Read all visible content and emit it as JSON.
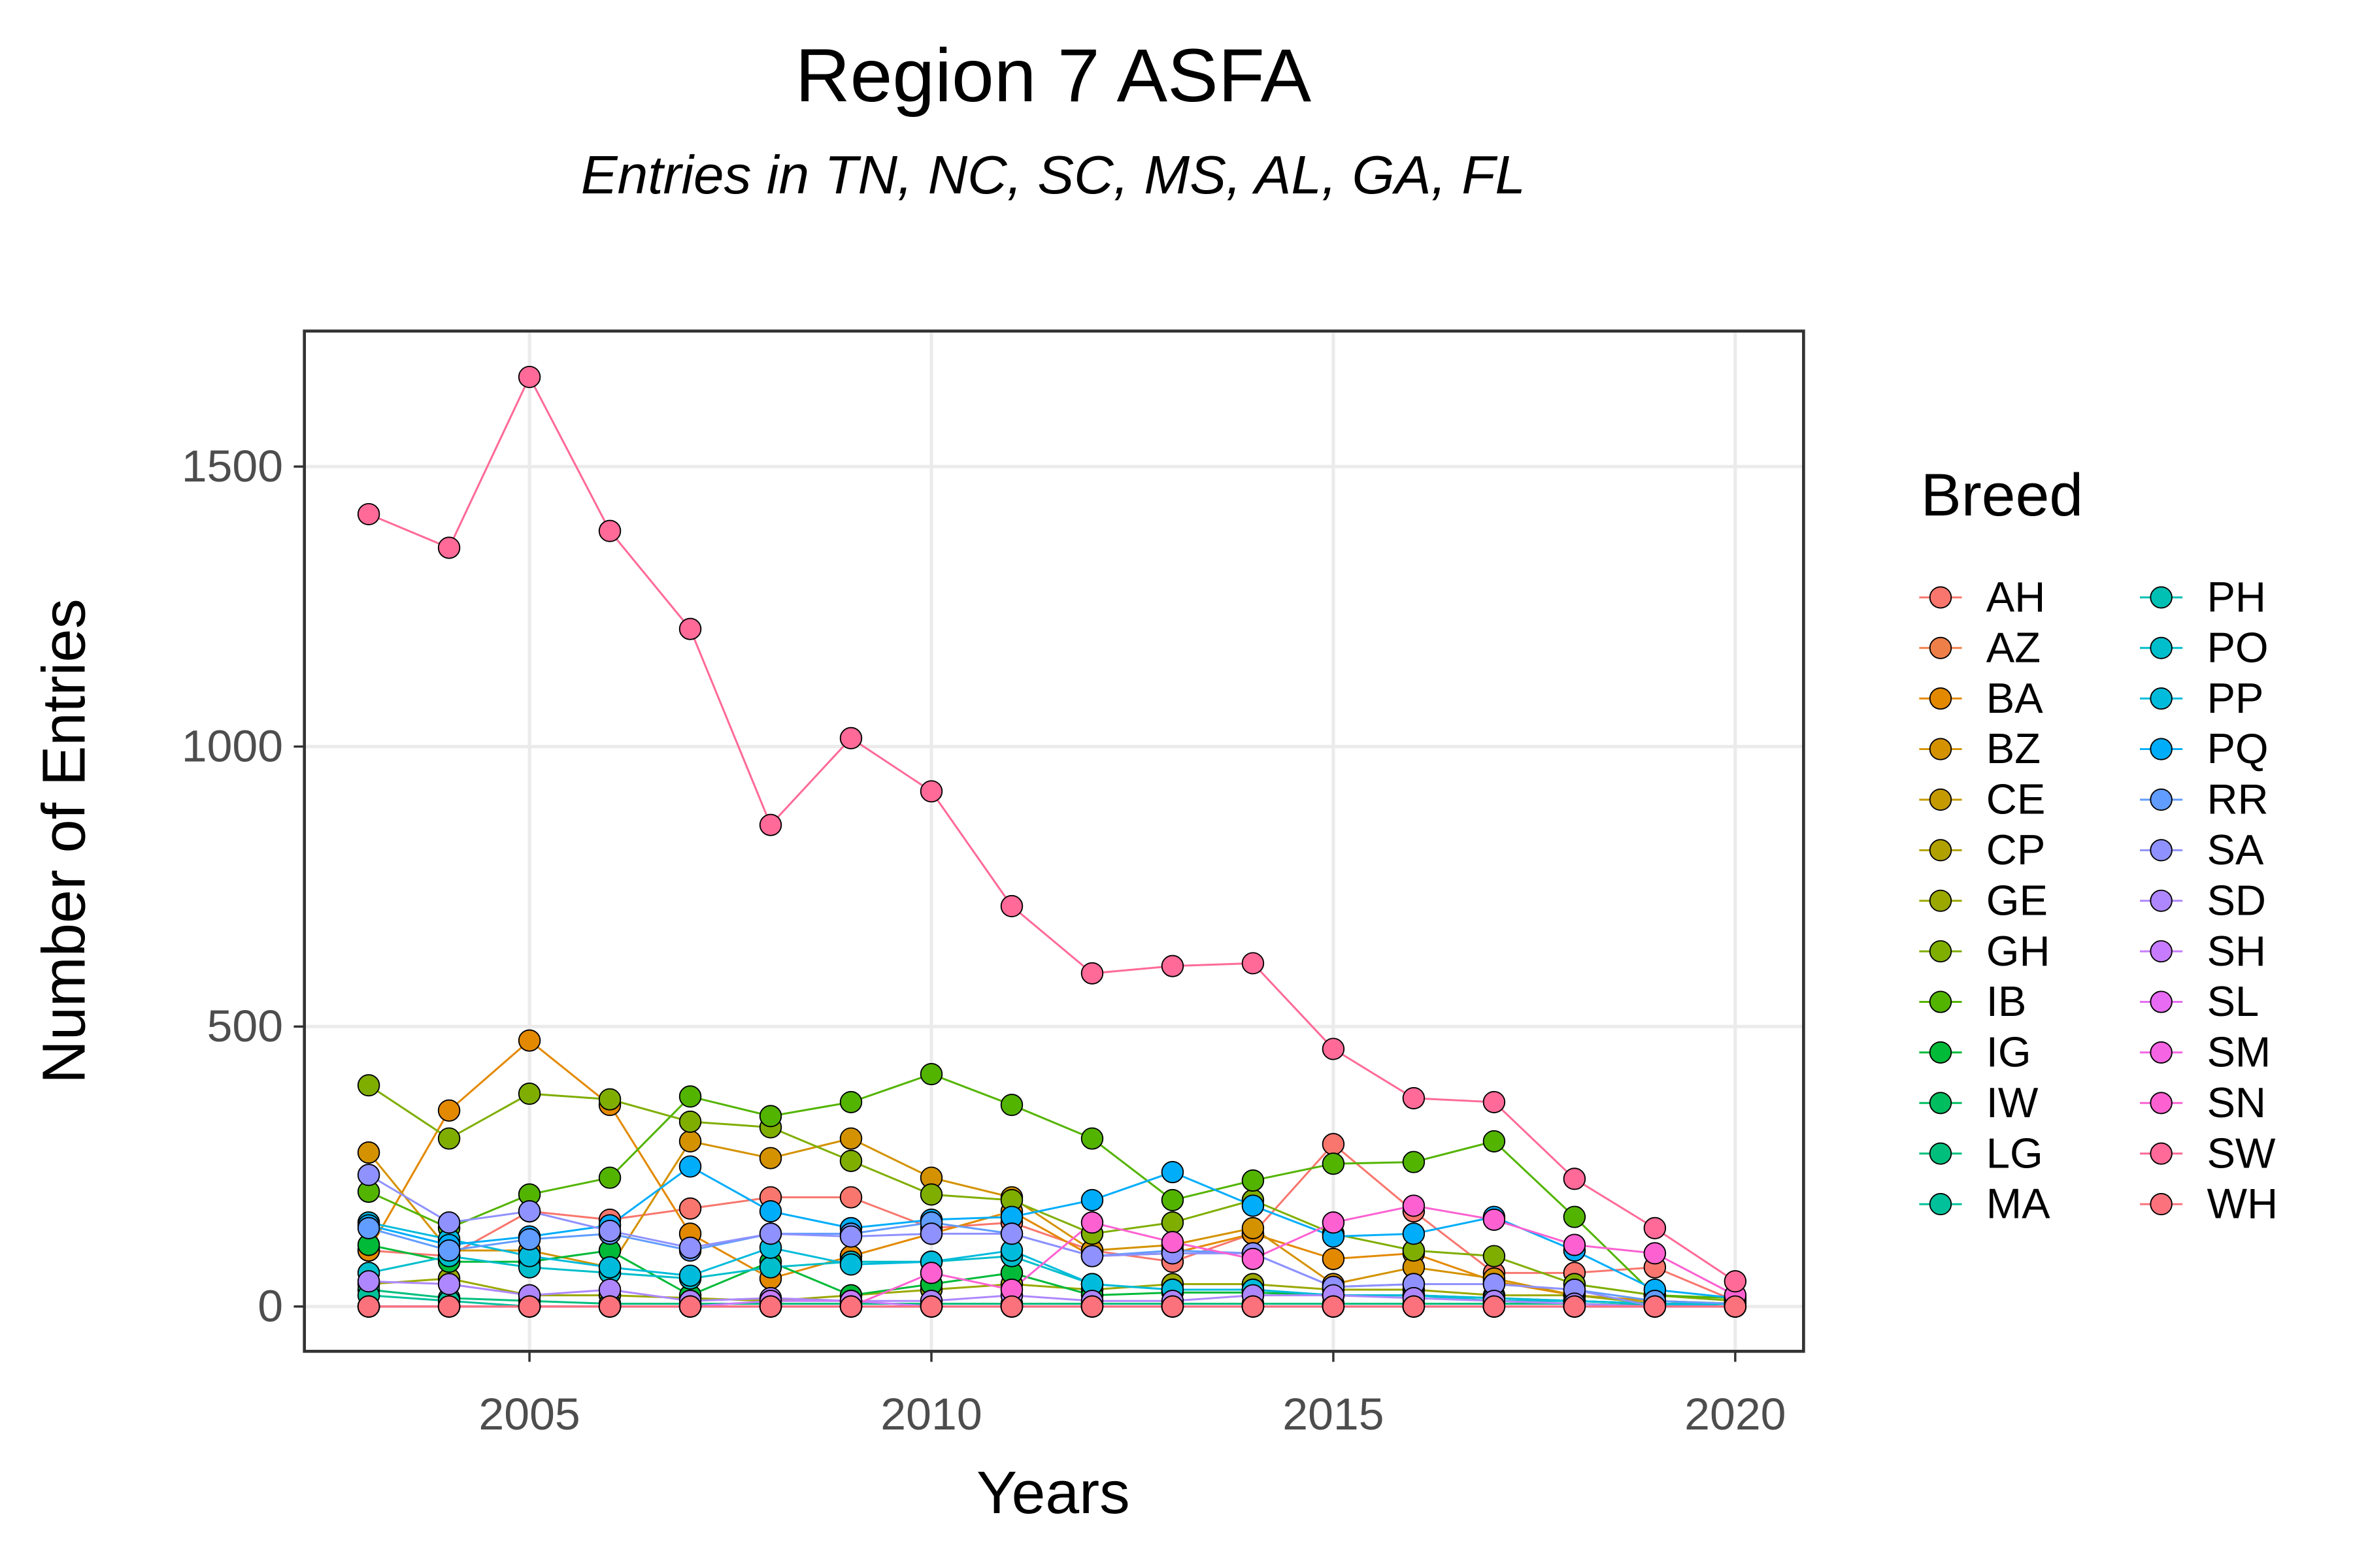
{
  "chart_data": {
    "type": "line",
    "title": "Region 7 ASFA",
    "subtitle": "Entries in TN, NC, SC, MS, AL, GA, FL",
    "x_label": "Years",
    "y_label": "Number of Entries",
    "legend_title": "Breed",
    "grid": true,
    "legend_position": "right",
    "x": [
      2003,
      2004,
      2005,
      2006,
      2007,
      2008,
      2009,
      2010,
      2011,
      2012,
      2013,
      2014,
      2015,
      2016,
      2017,
      2018,
      2019,
      2020
    ],
    "xlim": [
      2002.2,
      2020.85
    ],
    "xticks": [
      2005,
      2010,
      2015,
      2020
    ],
    "ylim": [
      -80,
      1742
    ],
    "yticks": [
      0,
      500,
      1000,
      1500
    ],
    "series": [
      {
        "name": "AH",
        "color": "#F8766D",
        "values": [
          100,
          90,
          170,
          155,
          175,
          195,
          195,
          140,
          150,
          100,
          80,
          130,
          290,
          170,
          60,
          60,
          70,
          10
        ]
      },
      {
        "name": "AZ",
        "color": "#EF7F49",
        "values": [
          0,
          0,
          0,
          0,
          0,
          0,
          0,
          0,
          0,
          0,
          0,
          0,
          0,
          0,
          0,
          0,
          0,
          0
        ]
      },
      {
        "name": "BA",
        "color": "#E38900",
        "values": [
          100,
          350,
          475,
          360,
          130,
          50,
          90,
          130,
          170,
          90,
          95,
          130,
          85,
          95,
          45,
          20,
          10,
          5
        ]
      },
      {
        "name": "BZ",
        "color": "#D49200",
        "values": [
          275,
          100,
          100,
          70,
          295,
          265,
          300,
          230,
          195,
          100,
          110,
          140,
          40,
          70,
          50,
          20,
          10,
          5
        ]
      },
      {
        "name": "CE",
        "color": "#C49A00",
        "values": [
          0,
          0,
          0,
          0,
          0,
          0,
          0,
          0,
          0,
          0,
          0,
          0,
          0,
          0,
          0,
          0,
          0,
          0
        ]
      },
      {
        "name": "CP",
        "color": "#B0A100",
        "values": [
          0,
          0,
          0,
          0,
          0,
          0,
          0,
          0,
          0,
          0,
          0,
          0,
          0,
          0,
          0,
          0,
          0,
          0
        ]
      },
      {
        "name": "GE",
        "color": "#9AA800",
        "values": [
          40,
          50,
          20,
          20,
          15,
          10,
          20,
          30,
          40,
          30,
          40,
          40,
          30,
          30,
          20,
          20,
          5,
          0
        ]
      },
      {
        "name": "GH",
        "color": "#7FAE00",
        "values": [
          395,
          300,
          380,
          370,
          330,
          320,
          260,
          200,
          190,
          130,
          150,
          190,
          130,
          100,
          90,
          40,
          20,
          10
        ]
      },
      {
        "name": "IB",
        "color": "#53B400",
        "values": [
          205,
          140,
          200,
          230,
          375,
          340,
          365,
          415,
          360,
          300,
          190,
          225,
          255,
          258,
          295,
          160,
          20,
          15
        ]
      },
      {
        "name": "IG",
        "color": "#00BA38",
        "values": [
          110,
          80,
          80,
          100,
          20,
          80,
          20,
          40,
          60,
          20,
          25,
          25,
          20,
          20,
          15,
          10,
          5,
          0
        ]
      },
      {
        "name": "IW",
        "color": "#00BD5F",
        "values": [
          0,
          0,
          0,
          0,
          0,
          0,
          0,
          0,
          0,
          0,
          0,
          0,
          0,
          0,
          0,
          0,
          0,
          0
        ]
      },
      {
        "name": "LG",
        "color": "#00BF7D",
        "values": [
          30,
          15,
          10,
          5,
          5,
          5,
          5,
          5,
          5,
          5,
          5,
          5,
          5,
          5,
          5,
          5,
          2,
          0
        ]
      },
      {
        "name": "MA",
        "color": "#00C19A",
        "values": [
          20,
          10,
          0,
          0,
          0,
          0,
          0,
          0,
          0,
          0,
          0,
          0,
          0,
          0,
          0,
          0,
          0,
          0
        ]
      },
      {
        "name": "PH",
        "color": "#00C0B4",
        "values": [
          0,
          0,
          0,
          0,
          0,
          0,
          0,
          0,
          0,
          0,
          0,
          0,
          0,
          0,
          0,
          0,
          0,
          0
        ]
      },
      {
        "name": "PO",
        "color": "#00BECB",
        "values": [
          60,
          90,
          70,
          60,
          50,
          70,
          80,
          80,
          90,
          40,
          30,
          30,
          20,
          20,
          10,
          10,
          5,
          5
        ]
      },
      {
        "name": "PP",
        "color": "#00BBDB",
        "values": [
          150,
          120,
          90,
          70,
          55,
          105,
          75,
          80,
          100,
          40,
          30,
          30,
          20,
          20,
          15,
          10,
          5,
          0
        ]
      },
      {
        "name": "PQ",
        "color": "#00ADFA",
        "values": [
          145,
          110,
          125,
          145,
          250,
          170,
          140,
          155,
          160,
          190,
          240,
          180,
          125,
          130,
          160,
          100,
          30,
          15
        ]
      },
      {
        "name": "RR",
        "color": "#619CFF",
        "values": [
          140,
          100,
          120,
          130,
          100,
          130,
          130,
          150,
          130,
          90,
          100,
          95,
          35,
          40,
          40,
          30,
          10,
          5
        ]
      },
      {
        "name": "SA",
        "color": "#8F91FF",
        "values": [
          235,
          150,
          170,
          135,
          105,
          130,
          125,
          130,
          130,
          90,
          95,
          95,
          35,
          40,
          40,
          30,
          0,
          0
        ]
      },
      {
        "name": "SD",
        "color": "#AE87FF",
        "values": [
          45,
          40,
          20,
          30,
          10,
          15,
          10,
          10,
          20,
          10,
          10,
          20,
          20,
          15,
          10,
          5,
          0,
          0
        ]
      },
      {
        "name": "SH",
        "color": "#C77CFF",
        "values": [
          0,
          0,
          0,
          0,
          0,
          10,
          10,
          0,
          0,
          0,
          0,
          0,
          0,
          0,
          0,
          0,
          0,
          0
        ]
      },
      {
        "name": "SL",
        "color": "#E76BF3",
        "values": [
          0,
          0,
          0,
          0,
          0,
          0,
          0,
          0,
          0,
          0,
          0,
          0,
          0,
          0,
          0,
          0,
          0,
          0
        ]
      },
      {
        "name": "SM",
        "color": "#F564E3",
        "values": [
          0,
          0,
          0,
          0,
          0,
          0,
          0,
          0,
          0,
          0,
          0,
          0,
          0,
          0,
          0,
          0,
          0,
          0
        ]
      },
      {
        "name": "SN",
        "color": "#FD61D1",
        "values": [
          0,
          0,
          0,
          0,
          0,
          0,
          0,
          60,
          30,
          150,
          115,
          85,
          150,
          180,
          155,
          110,
          95,
          20
        ]
      },
      {
        "name": "SW",
        "color": "#FF6A98",
        "values": [
          1415,
          1355,
          1660,
          1385,
          1210,
          860,
          1015,
          920,
          715,
          595,
          608,
          613,
          460,
          372,
          365,
          228,
          140,
          45
        ]
      },
      {
        "name": "WH",
        "color": "#FB727C",
        "values": [
          0,
          0,
          0,
          0,
          0,
          0,
          0,
          0,
          0,
          0,
          0,
          0,
          0,
          0,
          0,
          0,
          0,
          0
        ]
      }
    ]
  }
}
